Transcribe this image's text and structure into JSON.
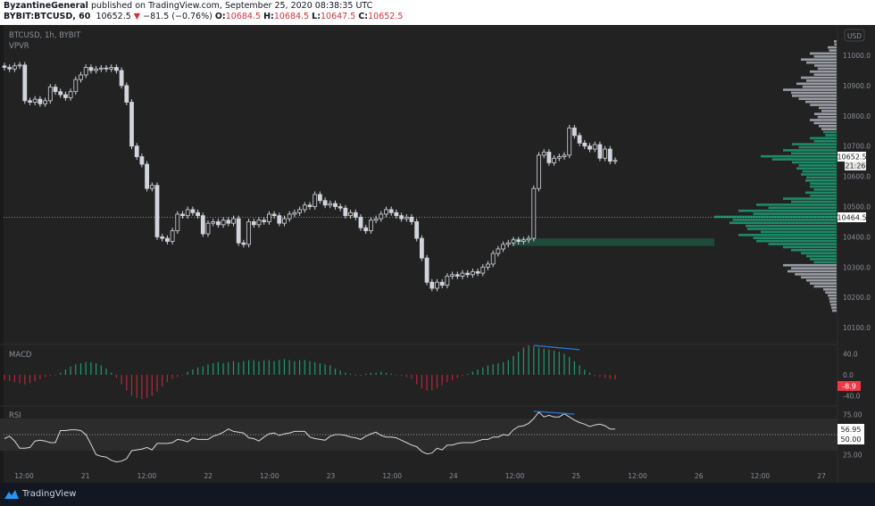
{
  "header": {
    "author": "ByzantineGeneral",
    "published": "published on TradingView.com, September 25, 2020 08:38:35 UTC",
    "symbol": "BYBIT:BTCUSD, 60",
    "last": "10652.5",
    "change": "−81.5 (−0.76%)",
    "change_icon": "triangle-down-icon",
    "o_label": "O:",
    "o": "10684.5",
    "h_label": "H:",
    "h": "10684.5",
    "l_label": "L:",
    "l": "10647.5",
    "c_label": "C:",
    "c": "10652.5"
  },
  "pane_labels": {
    "main": "BTCUSD, 1h, BYBIT",
    "vpvr": "VPVR",
    "macd": "MACD",
    "rsi": "RSI"
  },
  "price_axis": {
    "currency": "USD",
    "ticks": [
      "11000.0",
      "10900.0",
      "10800.0",
      "10700.0",
      "10600.0",
      "10500.0",
      "10400.0",
      "10300.0",
      "10200.0",
      "10100.0"
    ],
    "tick_values": [
      11000,
      10900,
      10800,
      10700,
      10600,
      10500,
      10400,
      10300,
      10200,
      10100
    ],
    "last_price_tag": "10652.5",
    "countdown_tag": "21:26",
    "poc_tag": "10464.5",
    "poc_value": 10464.5
  },
  "macd_axis": {
    "ticks": [
      "40.0",
      "0.0",
      "-40.0"
    ],
    "tick_values": [
      40,
      0,
      -40
    ],
    "value_tag": "-8.9"
  },
  "rsi_axis": {
    "ticks": [
      "75.00",
      "25.00"
    ],
    "tick_values": [
      75,
      25
    ],
    "value_tag": "56.95",
    "mid_tag": "50.00",
    "band": [
      30,
      70
    ],
    "mid": 50
  },
  "time_axis": {
    "labels": [
      "12:00",
      "21",
      "12:00",
      "22",
      "12:00",
      "23",
      "12:00",
      "24",
      "12:00",
      "25",
      "12:00",
      "26",
      "12:00",
      "27"
    ]
  },
  "colors": {
    "candle": "#d1d4dc",
    "up_volume": "#1f8a67",
    "other_volume": "#9a9ca3",
    "macd_pos": "#1f9a72",
    "macd_neg": "#b8263a",
    "drawing": "#2a7bd6",
    "accent_red": "#f23645",
    "gap_zone": "#1e4a3a"
  },
  "chart_data": {
    "type": "candlestick",
    "interval": "1h",
    "closes": [
      10960,
      10955,
      10965,
      10968,
      10850,
      10845,
      10855,
      10840,
      10850,
      10895,
      10880,
      10870,
      10860,
      10880,
      10920,
      10935,
      10960,
      10950,
      10955,
      10958,
      10955,
      10960,
      10950,
      10900,
      10845,
      10700,
      10665,
      10640,
      10560,
      10570,
      10400,
      10395,
      10385,
      10420,
      10475,
      10470,
      10490,
      10480,
      10470,
      10410,
      10445,
      10450,
      10440,
      10455,
      10445,
      10460,
      10380,
      10375,
      10450,
      10440,
      10455,
      10450,
      10475,
      10470,
      10445,
      10460,
      10475,
      10480,
      10490,
      10505,
      10500,
      10540,
      10520,
      10505,
      10510,
      10500,
      10495,
      10470,
      10480,
      10465,
      10430,
      10420,
      10455,
      10460,
      10475,
      10490,
      10480,
      10470,
      10460,
      10465,
      10450,
      10395,
      10330,
      10250,
      10230,
      10250,
      10240,
      10270,
      10275,
      10270,
      10280,
      10275,
      10285,
      10280,
      10300,
      10310,
      10345,
      10360,
      10375,
      10380,
      10390,
      10385,
      10390,
      10395,
      10560,
      10670,
      10680,
      10645,
      10660,
      10665,
      10670,
      10760,
      10735,
      10710,
      10700,
      10690,
      10705,
      10660,
      10690,
      10650,
      10652.5
    ],
    "macd_histogram": [
      -10,
      -12,
      -14,
      -16,
      -18,
      -16,
      -12,
      -8,
      -4,
      -2,
      0,
      4,
      10,
      16,
      20,
      22,
      24,
      24,
      22,
      18,
      12,
      4,
      -6,
      -18,
      -30,
      -40,
      -44,
      -46,
      -44,
      -40,
      -32,
      -22,
      -14,
      -8,
      -4,
      0,
      6,
      10,
      14,
      16,
      20,
      22,
      24,
      22,
      24,
      26,
      24,
      26,
      28,
      28,
      26,
      28,
      28,
      26,
      28,
      30,
      28,
      26,
      28,
      28,
      26,
      24,
      22,
      20,
      18,
      12,
      8,
      4,
      2,
      -2,
      -2,
      2,
      4,
      4,
      6,
      4,
      2,
      0,
      -2,
      -4,
      -8,
      -18,
      -26,
      -30,
      -30,
      -26,
      -20,
      -14,
      -10,
      -6,
      -2,
      2,
      6,
      10,
      14,
      18,
      20,
      22,
      24,
      28,
      36,
      44,
      52,
      56,
      54,
      52,
      50,
      48,
      46,
      44,
      40,
      34,
      26,
      18,
      10,
      4,
      -2,
      -4,
      -6,
      -8,
      -8.9
    ],
    "rsi": [
      45,
      48,
      42,
      33,
      33,
      34,
      42,
      43,
      42,
      40,
      40,
      55,
      55,
      56,
      56,
      55,
      50,
      38,
      25,
      23,
      22,
      18,
      16,
      17,
      20,
      30,
      31,
      32,
      34,
      31,
      39,
      39,
      39,
      40,
      44,
      43,
      41,
      46,
      44,
      44,
      44,
      48,
      50,
      53,
      57,
      54,
      53,
      52,
      46,
      45,
      42,
      47,
      51,
      52,
      49,
      51,
      52,
      54,
      54,
      54,
      47,
      45,
      44,
      43,
      48,
      50,
      50,
      49,
      47,
      46,
      44,
      48,
      51,
      53,
      49,
      47,
      47,
      46,
      43,
      40,
      37,
      35,
      29,
      26,
      27,
      33,
      31,
      37,
      37,
      39,
      40,
      40,
      40,
      42,
      44,
      44,
      47,
      47,
      50,
      49,
      56,
      60,
      61,
      64,
      70,
      78,
      72,
      74,
      72,
      72,
      76,
      72,
      68,
      65,
      63,
      60,
      62,
      63,
      61,
      57,
      56.95
    ],
    "vpvr": {
      "price_levels": [
        11040,
        11020,
        11000,
        10980,
        10960,
        10940,
        10920,
        10900,
        10880,
        10860,
        10840,
        10820,
        10800,
        10780,
        10760,
        10740,
        10720,
        10700,
        10680,
        10660,
        10640,
        10620,
        10600,
        10580,
        10560,
        10540,
        10520,
        10500,
        10480,
        10460,
        10440,
        10420,
        10400,
        10380,
        10360,
        10340,
        10320,
        10300,
        10280,
        10260,
        10240,
        10220,
        10200,
        10180,
        10160
      ],
      "relative_volume": [
        3,
        10,
        30,
        40,
        25,
        30,
        40,
        45,
        60,
        50,
        35,
        20,
        25,
        30,
        20,
        15,
        30,
        50,
        60,
        85,
        50,
        45,
        40,
        35,
        30,
        35,
        60,
        90,
        110,
        137,
        120,
        100,
        110,
        90,
        60,
        40,
        30,
        60,
        55,
        40,
        30,
        15,
        10,
        8,
        6
      ],
      "value_area": [
        10320,
        10740
      ]
    },
    "gap_zone": {
      "from_price": 10370,
      "to_price": 10395,
      "start_index": 100
    },
    "drawings": [
      {
        "pane": "macd",
        "from": [
          104,
          56
        ],
        "to": [
          113,
          48
        ]
      },
      {
        "pane": "rsi",
        "from": [
          104,
          79
        ],
        "to": [
          112,
          75.5
        ]
      }
    ]
  },
  "footer": {
    "brand": "TradingView",
    "logo_icon": "tradingview-logo-icon"
  }
}
